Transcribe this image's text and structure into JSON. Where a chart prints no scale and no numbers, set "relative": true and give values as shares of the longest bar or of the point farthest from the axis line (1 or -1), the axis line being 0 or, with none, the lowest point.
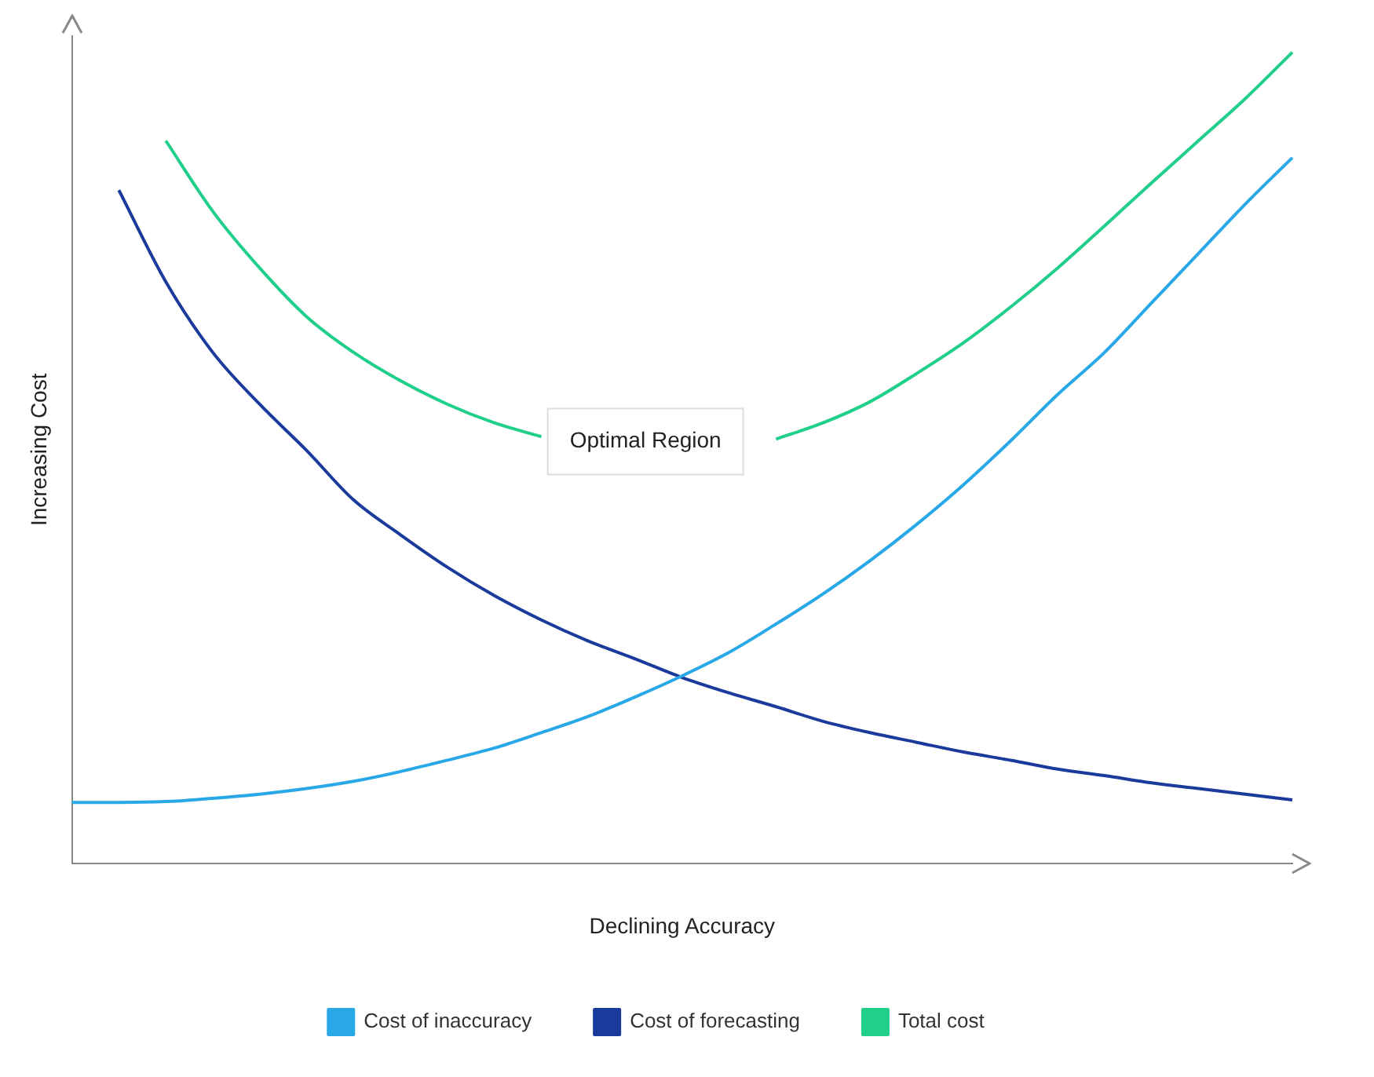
{
  "chart_data": {
    "type": "line",
    "relative": true,
    "xlabel": "Declining Accuracy",
    "ylabel": "Increasing Cost",
    "annotations": [
      "Optimal Region"
    ],
    "legend": "bottom",
    "grid": false,
    "marker": "none",
    "categories": [
      null,
      null,
      null,
      null,
      null,
      null,
      null,
      null,
      null,
      null,
      null,
      null,
      null,
      null,
      null,
      null,
      null,
      null,
      null,
      null,
      null,
      null,
      null,
      null,
      null,
      null,
      null
    ],
    "series": [
      {
        "name": "Cost of inaccuracy",
        "color": "#29a8e8",
        "values": [
          0.075,
          0.075,
          0.076,
          0.08,
          0.085,
          0.092,
          0.101,
          0.113,
          0.127,
          0.142,
          0.161,
          0.181,
          0.205,
          0.231,
          0.26,
          0.295,
          0.332,
          0.373,
          0.418,
          0.467,
          0.521,
          0.578,
          0.63,
          0.691,
          0.752,
          0.813,
          0.87
        ]
      },
      {
        "name": "Cost of forecasting",
        "color": "#1a3a9c",
        "values": [
          null,
          0.83,
          0.717,
          0.63,
          0.566,
          0.509,
          0.448,
          0.405,
          0.365,
          0.33,
          0.3,
          0.274,
          0.252,
          0.229,
          0.21,
          0.193,
          0.175,
          0.161,
          0.149,
          0.137,
          0.127,
          0.116,
          0.108,
          0.099,
          0.092,
          0.085,
          0.078
        ]
      },
      {
        "name": "Total cost",
        "color": "#1fcf8a",
        "values": [
          null,
          null,
          0.891,
          0.804,
          0.734,
          0.674,
          0.63,
          0.595,
          0.566,
          0.543,
          0.526,
          null,
          null,
          null,
          null,
          0.523,
          0.543,
          0.569,
          0.604,
          0.642,
          0.686,
          0.734,
          0.786,
          0.839,
          0.891,
          0.943,
          1
        ]
      }
    ]
  }
}
